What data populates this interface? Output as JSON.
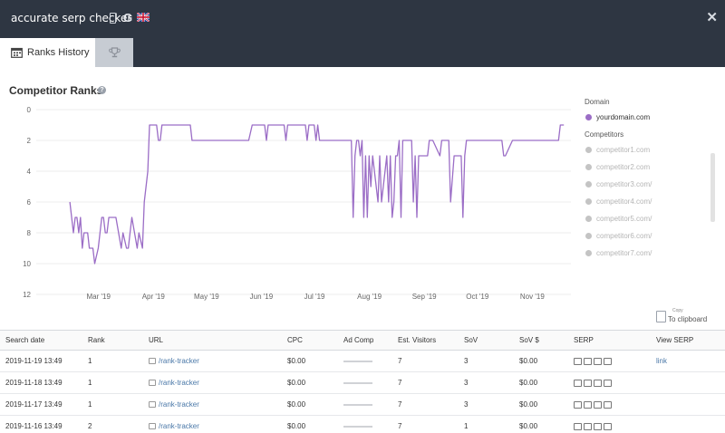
{
  "app": {
    "title": "accurate serp checker",
    "close_symbol": "✕"
  },
  "header_icons": {
    "device": "phone-icon",
    "engine": "google-icon",
    "engine_glyph": "G",
    "country": "uk-flag-icon"
  },
  "tabs": [
    {
      "label": "Ranks History",
      "icon": "calendar-icon",
      "active": true
    },
    {
      "label": "",
      "icon": "trophy-icon",
      "active": false
    }
  ],
  "section": {
    "title": "Competitor Ranks",
    "help_symbol": "?"
  },
  "legend": {
    "domain_heading": "Domain",
    "domain": {
      "label": "yourdomain.com",
      "color": "#9b6dc6"
    },
    "competitors_heading": "Competitors",
    "competitors": [
      "competitor1.com",
      "competitor2.com",
      "competitor3.com/",
      "competitor4.com/",
      "competitor5.com/",
      "competitor6.com/",
      "competitor7.com/"
    ],
    "inactive_color": "#c4c4c4"
  },
  "chart_data": {
    "type": "line",
    "x_tick_labels": [
      "Mar '19",
      "Apr '19",
      "May '19",
      "Jun '19",
      "Jul '19",
      "Aug '19",
      "Sep '19",
      "Oct '19",
      "Nov '19"
    ],
    "y_tick_labels": [
      "0",
      "2",
      "4",
      "6",
      "8",
      "10",
      "12"
    ],
    "ylim": [
      0,
      12
    ],
    "y_inverted": true,
    "grid": "horizontal",
    "series": [
      {
        "name": "yourdomain.com",
        "color": "#9b6dc6",
        "x": [
          "2019-02-20",
          "2019-02-22",
          "2019-02-23",
          "2019-02-24",
          "2019-02-25",
          "2019-02-26",
          "2019-02-27",
          "2019-02-28",
          "2019-03-01",
          "2019-03-02",
          "2019-03-03",
          "2019-03-05",
          "2019-03-06",
          "2019-03-08",
          "2019-03-10",
          "2019-03-11",
          "2019-03-12",
          "2019-03-13",
          "2019-03-14",
          "2019-03-15",
          "2019-03-18",
          "2019-03-21",
          "2019-03-22",
          "2019-03-24",
          "2019-03-25",
          "2019-03-26",
          "2019-03-27",
          "2019-03-30",
          "2019-03-31",
          "2019-04-02",
          "2019-04-03",
          "2019-04-05",
          "2019-04-06",
          "2019-04-07",
          "2019-04-08",
          "2019-04-10",
          "2019-04-11",
          "2019-04-12",
          "2019-04-13",
          "2019-04-14",
          "2019-04-29",
          "2019-04-30",
          "2019-05-01",
          "2019-06-01",
          "2019-06-03",
          "2019-06-04",
          "2019-06-10",
          "2019-06-11",
          "2019-06-12",
          "2019-06-13",
          "2019-06-21",
          "2019-06-22",
          "2019-06-23",
          "2019-06-24",
          "2019-07-03",
          "2019-07-04",
          "2019-07-05",
          "2019-07-08",
          "2019-07-09",
          "2019-07-10",
          "2019-07-11",
          "2019-07-27",
          "2019-07-28",
          "2019-07-29",
          "2019-07-30",
          "2019-07-31",
          "2019-08-01",
          "2019-08-02",
          "2019-08-03",
          "2019-08-04",
          "2019-08-05",
          "2019-08-06",
          "2019-08-07",
          "2019-08-08",
          "2019-08-09",
          "2019-08-10",
          "2019-08-13",
          "2019-08-14",
          "2019-08-15",
          "2019-08-18",
          "2019-08-19",
          "2019-08-20",
          "2019-08-21",
          "2019-08-22",
          "2019-08-23",
          "2019-08-24",
          "2019-08-25",
          "2019-08-26",
          "2019-08-27",
          "2019-08-28",
          "2019-08-29",
          "2019-08-30",
          "2019-08-31",
          "2019-09-01",
          "2019-09-02",
          "2019-09-03",
          "2019-09-04",
          "2019-09-05",
          "2019-09-06",
          "2019-09-09",
          "2019-09-10",
          "2019-09-11",
          "2019-09-12",
          "2019-09-13",
          "2019-09-17",
          "2019-09-18",
          "2019-09-19",
          "2019-09-20",
          "2019-09-21",
          "2019-09-22",
          "2019-09-23",
          "2019-09-25",
          "2019-09-26",
          "2019-09-27",
          "2019-09-28",
          "2019-09-29",
          "2019-09-30",
          "2019-10-01",
          "2019-10-02",
          "2019-10-03",
          "2019-10-04",
          "2019-10-20",
          "2019-10-21",
          "2019-10-22",
          "2019-10-23",
          "2019-10-24",
          "2019-10-28",
          "2019-10-29",
          "2019-11-22",
          "2019-11-23",
          "2019-11-24",
          "2019-11-26"
        ],
        "y": [
          6,
          8,
          7,
          7,
          8,
          7,
          9,
          8,
          8,
          8,
          9,
          9,
          10,
          9,
          7,
          7,
          8,
          8,
          7,
          7,
          7,
          9,
          8,
          9,
          9,
          8,
          7,
          9,
          8,
          9,
          6,
          4,
          1,
          1,
          1,
          1,
          2,
          2,
          1,
          1,
          1,
          2,
          2,
          2,
          1,
          1,
          1,
          2,
          1,
          1,
          1,
          2,
          1,
          1,
          1,
          2,
          1,
          1,
          2,
          1,
          2,
          2,
          2,
          2,
          7,
          3,
          2,
          2,
          3,
          2,
          7,
          3,
          7,
          3,
          5,
          3,
          6,
          3,
          6,
          3,
          6,
          3,
          7,
          6,
          3,
          3,
          2,
          7,
          2,
          2,
          2,
          2,
          2,
          2,
          6,
          3,
          7,
          3,
          3,
          3,
          3,
          2,
          2,
          2,
          3,
          2,
          2,
          2,
          2,
          2,
          6,
          3,
          3,
          3,
          3,
          3,
          7,
          3,
          2,
          2,
          2,
          2,
          2,
          2,
          3,
          3,
          2,
          2,
          2,
          2,
          1,
          1
        ]
      }
    ]
  },
  "clipboard": {
    "caption": "Copy",
    "label": "To clipboard",
    "icon": "clipboard-icon"
  },
  "table": {
    "headers": [
      "Search date",
      "Rank",
      "URL",
      "CPC",
      "Ad Comp",
      "Est. Visitors",
      "SoV",
      "SoV $",
      "SERP",
      "View SERP"
    ],
    "rows": [
      {
        "date": "2019-11-19 13:49",
        "rank": "1",
        "url": "/rank-tracker",
        "cpc": "$0.00",
        "visitors": "7",
        "sov": "3",
        "sov_dollar": "$0.00",
        "view": "link"
      },
      {
        "date": "2019-11-18 13:49",
        "rank": "1",
        "url": "/rank-tracker",
        "cpc": "$0.00",
        "visitors": "7",
        "sov": "3",
        "sov_dollar": "$0.00",
        "view": ""
      },
      {
        "date": "2019-11-17 13:49",
        "rank": "1",
        "url": "/rank-tracker",
        "cpc": "$0.00",
        "visitors": "7",
        "sov": "3",
        "sov_dollar": "$0.00",
        "view": ""
      },
      {
        "date": "2019-11-16 13:49",
        "rank": "2",
        "url": "/rank-tracker",
        "cpc": "$0.00",
        "visitors": "7",
        "sov": "1",
        "sov_dollar": "$0.00",
        "view": ""
      }
    ]
  }
}
